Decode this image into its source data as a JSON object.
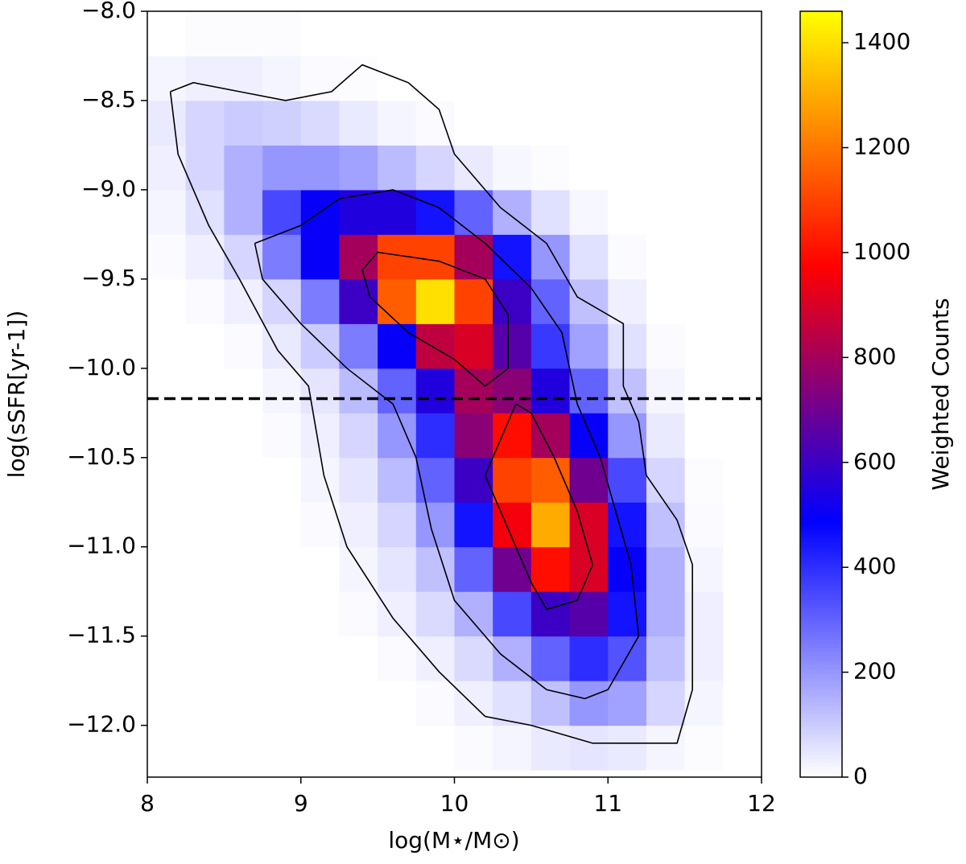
{
  "chart_data": {
    "type": "hist2d",
    "xlabel": "log(M⋆/M⊙)",
    "ylabel": "log(sSFR[yr-1])",
    "colorbar_label": "Weighted Counts",
    "xlim": [
      8,
      12
    ],
    "ylim": [
      -12.29,
      -8.0
    ],
    "xticks": [
      8,
      9,
      10,
      11,
      12
    ],
    "yticks": [
      {
        "value": -12.0,
        "label": "−12.0"
      },
      {
        "value": -11.5,
        "label": "−11.5"
      },
      {
        "value": -11.0,
        "label": "−11.0"
      },
      {
        "value": -10.5,
        "label": "−10.5"
      },
      {
        "value": -10.0,
        "label": "−10.0"
      },
      {
        "value": -9.5,
        "label": "−9.5"
      },
      {
        "value": -9.0,
        "label": "−9.0"
      },
      {
        "value": -8.5,
        "label": "−8.5"
      },
      {
        "value": -8.0,
        "label": "−8.0"
      }
    ],
    "clim": [
      0,
      1460
    ],
    "cticks": [
      0,
      200,
      400,
      600,
      800,
      1000,
      1200,
      1400
    ],
    "cmap": [
      "#ffffff",
      "#0000ff",
      "#ff0000",
      "#ffff00"
    ],
    "xbins": [
      8.0,
      8.25,
      8.5,
      8.75,
      9.0,
      9.25,
      9.5,
      9.75,
      10.0,
      10.25,
      10.5,
      10.75,
      11.0,
      11.25,
      11.5,
      11.75,
      12.0
    ],
    "ybins": [
      -12.25,
      -12.0,
      -11.75,
      -11.5,
      -11.25,
      -11.0,
      -10.75,
      -10.5,
      -10.25,
      -10.0,
      -9.75,
      -9.5,
      -9.25,
      -9.0,
      -8.75,
      -8.5,
      -8.25,
      -8.0
    ],
    "counts": [
      [
        0,
        0,
        0,
        0,
        0,
        0,
        0,
        0,
        10,
        20,
        40,
        50,
        40,
        20,
        5,
        0
      ],
      [
        0,
        0,
        0,
        0,
        0,
        0,
        0,
        10,
        30,
        60,
        120,
        200,
        180,
        80,
        20,
        0
      ],
      [
        0,
        0,
        0,
        0,
        0,
        0,
        10,
        30,
        70,
        150,
        300,
        400,
        330,
        120,
        30,
        0
      ],
      [
        0,
        0,
        0,
        0,
        0,
        10,
        30,
        70,
        150,
        350,
        600,
        650,
        450,
        150,
        30,
        0
      ],
      [
        0,
        0,
        0,
        0,
        0,
        20,
        50,
        120,
        300,
        700,
        1000,
        900,
        500,
        150,
        20,
        0
      ],
      [
        0,
        0,
        0,
        0,
        10,
        30,
        80,
        200,
        450,
        950,
        1300,
        900,
        450,
        120,
        10,
        0
      ],
      [
        0,
        0,
        0,
        0,
        20,
        50,
        130,
        300,
        600,
        1100,
        1150,
        700,
        350,
        80,
        5,
        0
      ],
      [
        0,
        0,
        0,
        10,
        30,
        80,
        200,
        400,
        750,
        1000,
        800,
        500,
        200,
        40,
        0,
        0
      ],
      [
        0,
        0,
        0,
        20,
        50,
        130,
        300,
        550,
        800,
        750,
        550,
        300,
        120,
        20,
        0,
        0
      ],
      [
        0,
        0,
        10,
        40,
        100,
        250,
        500,
        850,
        900,
        650,
        380,
        180,
        60,
        10,
        0,
        0
      ],
      [
        0,
        10,
        30,
        80,
        250,
        600,
        1150,
        1400,
        1100,
        600,
        300,
        120,
        30,
        0,
        0,
        0
      ],
      [
        10,
        30,
        80,
        250,
        500,
        800,
        1100,
        1100,
        800,
        450,
        200,
        60,
        10,
        0,
        0,
        0
      ],
      [
        20,
        60,
        150,
        350,
        500,
        550,
        550,
        450,
        300,
        150,
        60,
        15,
        0,
        0,
        0,
        0
      ],
      [
        30,
        80,
        150,
        200,
        200,
        180,
        130,
        80,
        40,
        15,
        5,
        0,
        0,
        0,
        0,
        0
      ],
      [
        40,
        80,
        100,
        90,
        70,
        40,
        20,
        10,
        0,
        0,
        0,
        0,
        0,
        0,
        0,
        0
      ],
      [
        20,
        30,
        30,
        20,
        10,
        5,
        0,
        0,
        0,
        0,
        0,
        0,
        0,
        0,
        0,
        0
      ],
      [
        0,
        5,
        5,
        5,
        0,
        0,
        0,
        0,
        0,
        0,
        0,
        0,
        0,
        0,
        0,
        0
      ]
    ],
    "hline": -10.17,
    "contours": [
      {
        "x": [
          8.15,
          8.3,
          8.6,
          8.9,
          9.2,
          9.4,
          9.7,
          9.9,
          10.0,
          10.3,
          10.6,
          10.8,
          11.1,
          11.1,
          11.2,
          11.25,
          11.45,
          11.55,
          11.55,
          11.55,
          11.45,
          11.2,
          10.9,
          10.7,
          10.5,
          10.2,
          9.9,
          9.6,
          9.3,
          9.15,
          9.05,
          8.85,
          8.6,
          8.4,
          8.2,
          8.15
        ],
        "y": [
          -8.45,
          -8.4,
          -8.45,
          -8.5,
          -8.45,
          -8.3,
          -8.4,
          -8.55,
          -8.8,
          -9.1,
          -9.3,
          -9.6,
          -9.75,
          -10.1,
          -10.3,
          -10.6,
          -10.85,
          -11.1,
          -11.5,
          -11.8,
          -12.1,
          -12.1,
          -12.1,
          -12.05,
          -12.0,
          -11.95,
          -11.7,
          -11.4,
          -11.0,
          -10.6,
          -10.1,
          -9.9,
          -9.5,
          -9.2,
          -8.8,
          -8.45
        ]
      },
      {
        "x": [
          8.7,
          9.0,
          9.25,
          9.6,
          9.9,
          10.2,
          10.5,
          10.7,
          10.8,
          10.95,
          11.05,
          11.15,
          11.2,
          11.0,
          10.85,
          10.6,
          10.3,
          10.0,
          9.85,
          9.75,
          9.6,
          9.3,
          9.0,
          8.75,
          8.7
        ],
        "y": [
          -9.3,
          -9.2,
          -9.05,
          -9.0,
          -9.1,
          -9.3,
          -9.55,
          -9.8,
          -10.2,
          -10.5,
          -10.8,
          -11.1,
          -11.5,
          -11.8,
          -11.85,
          -11.8,
          -11.6,
          -11.3,
          -10.9,
          -10.5,
          -10.2,
          -10.0,
          -9.75,
          -9.5,
          -9.3
        ]
      },
      {
        "x": [
          9.4,
          9.5,
          9.9,
          10.2,
          10.35,
          10.35,
          10.2,
          10.0,
          9.7,
          9.45,
          9.4
        ],
        "y": [
          -9.45,
          -9.35,
          -9.4,
          -9.5,
          -9.7,
          -10.0,
          -10.1,
          -9.95,
          -9.8,
          -9.6,
          -9.45
        ]
      },
      {
        "x": [
          10.3,
          10.4,
          10.5,
          10.65,
          10.8,
          10.9,
          10.8,
          10.6,
          10.5,
          10.35,
          10.2,
          10.3
        ],
        "y": [
          -10.4,
          -10.2,
          -10.25,
          -10.5,
          -10.8,
          -11.1,
          -11.3,
          -11.35,
          -11.2,
          -10.9,
          -10.6,
          -10.4
        ]
      }
    ]
  }
}
